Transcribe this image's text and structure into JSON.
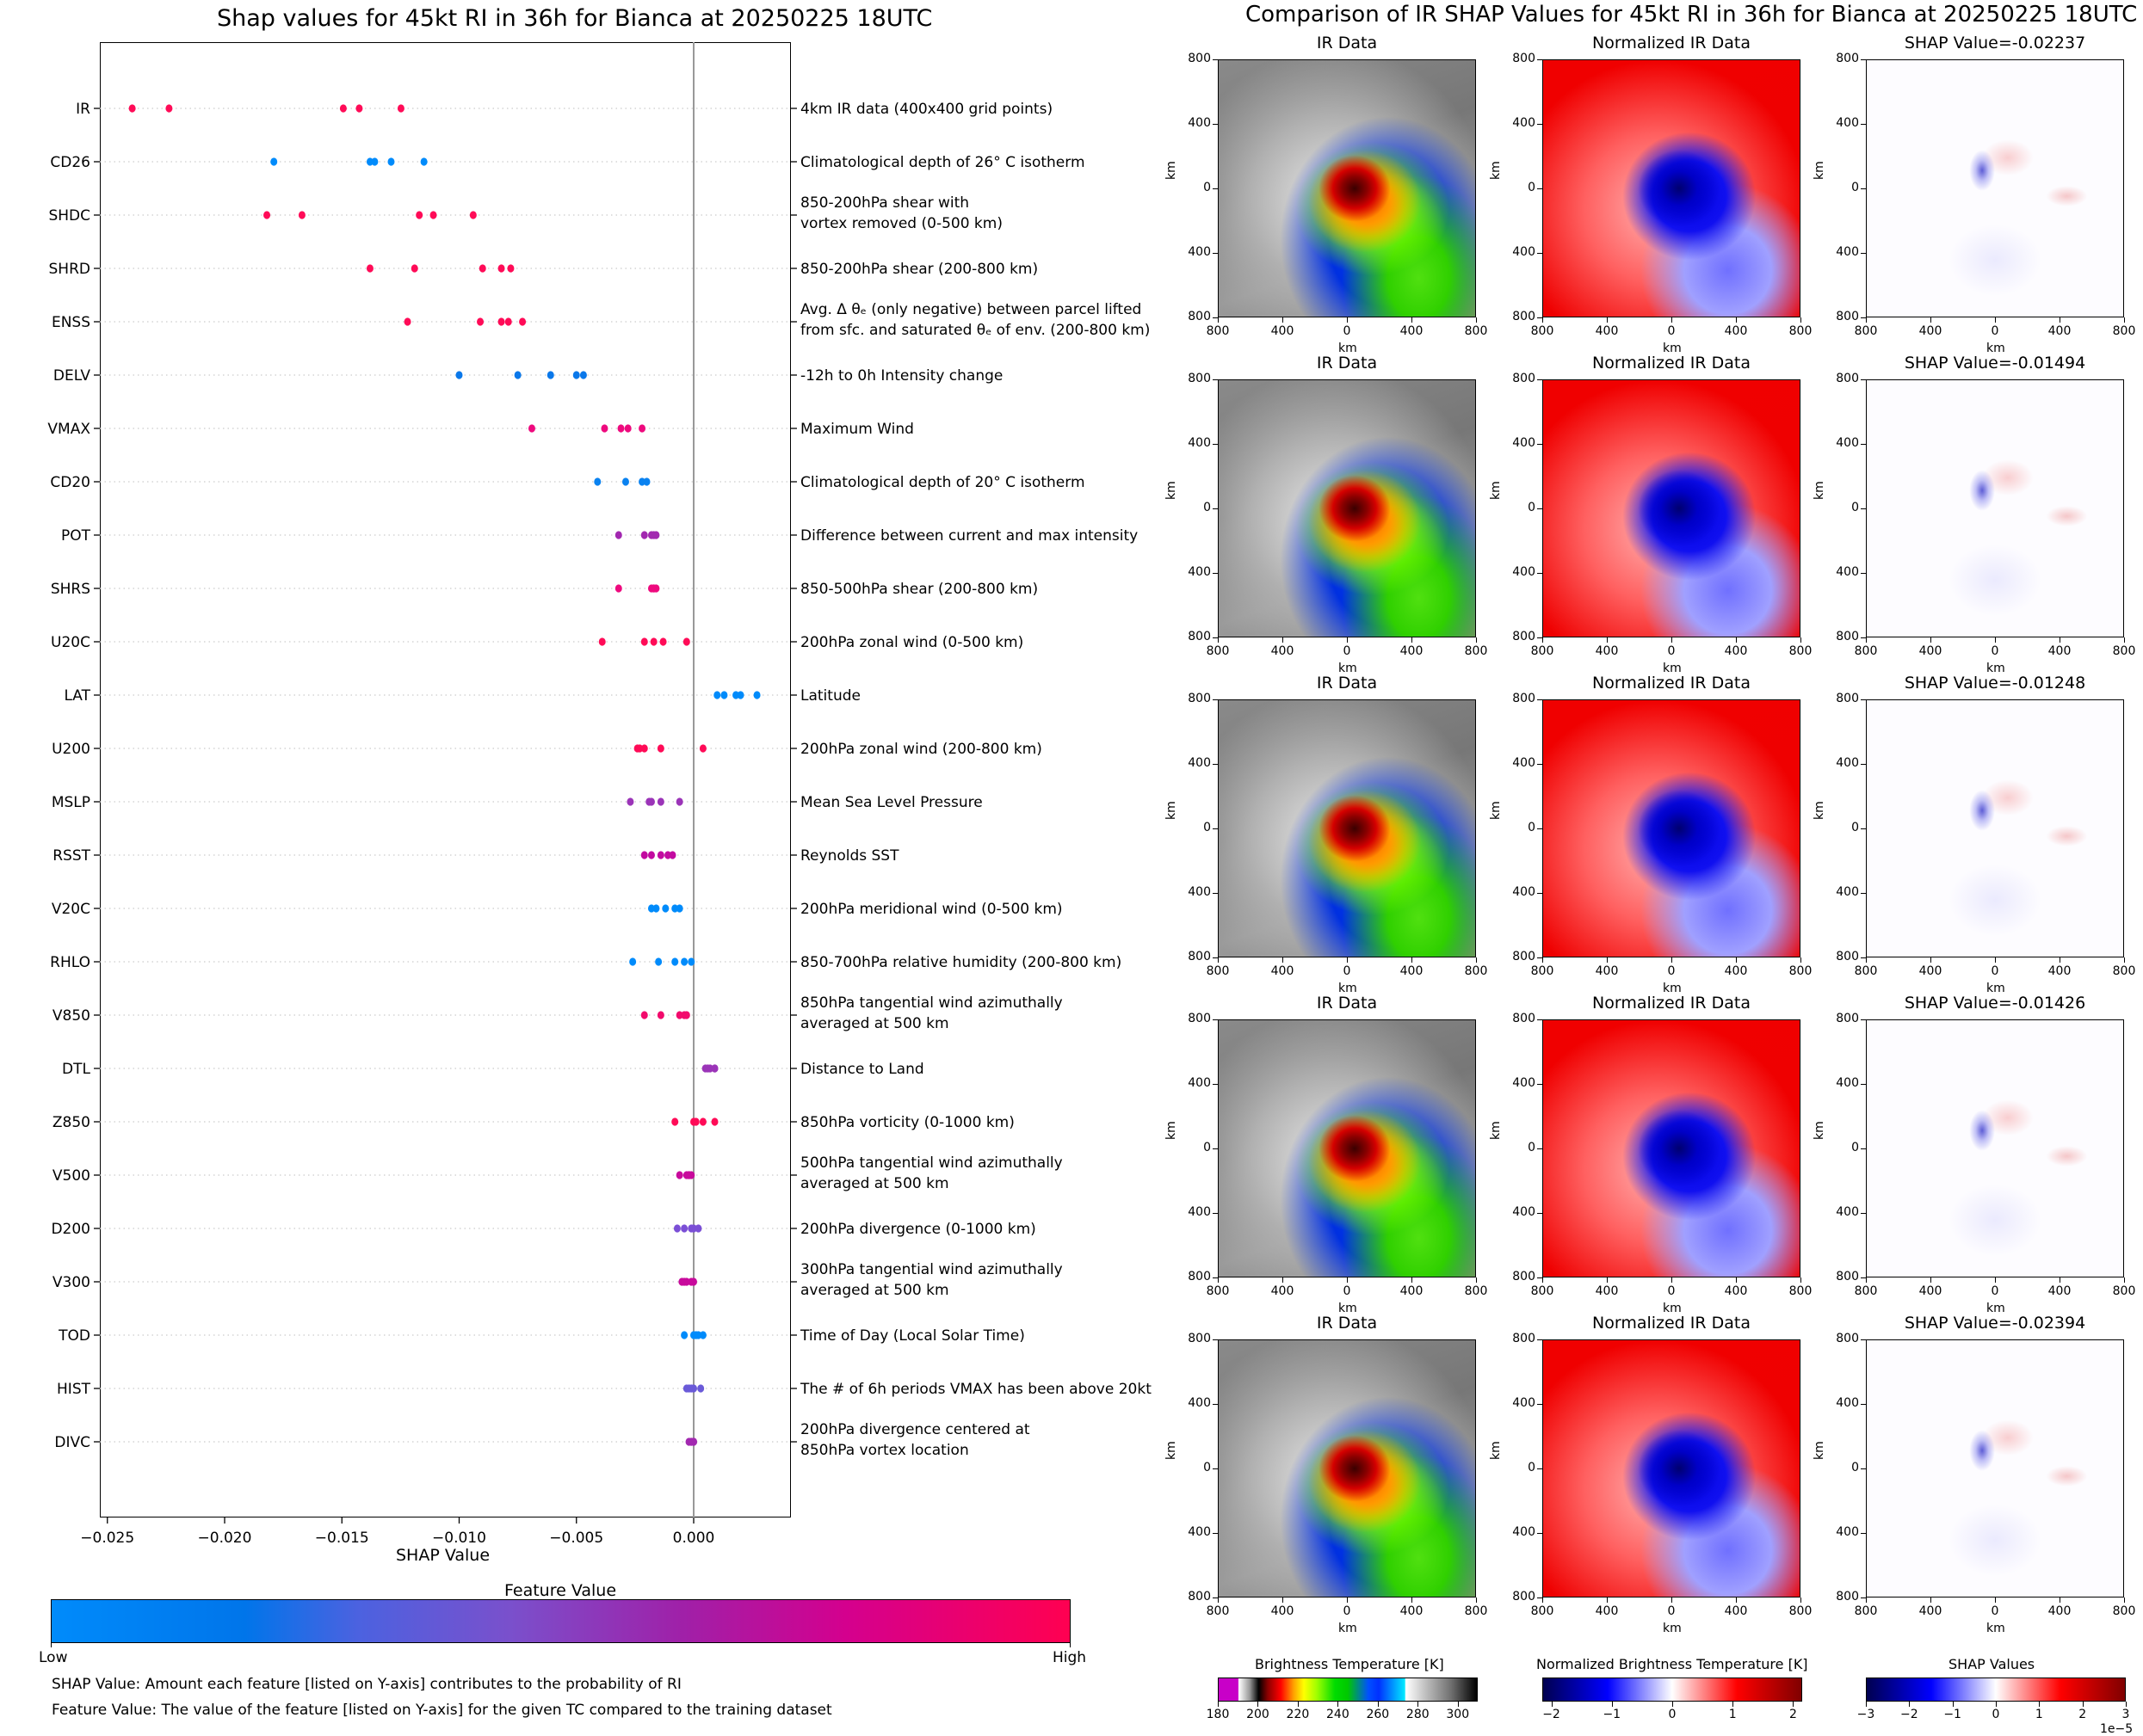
{
  "chart_data": [
    {
      "type": "scatter",
      "title": "Shap values for 45kt RI in 36h for Bianca at 20250225 18UTC",
      "xlabel": "SHAP Value",
      "ylabel": "",
      "xlim": [
        -0.0255,
        0.0041
      ],
      "xticks": [
        -0.025,
        -0.02,
        -0.015,
        -0.01,
        -0.005,
        0.0
      ],
      "xtick_labels": [
        "−0.025",
        "−0.020",
        "−0.015",
        "−0.010",
        "−0.005",
        "0.000"
      ],
      "zero_line": true,
      "grid": "horizontal dotted at each feature",
      "features": [
        {
          "name": "IR",
          "description": [
            "4km IR data (400x400 grid points)"
          ],
          "color": "#ff0b57",
          "values": [
            -0.02394,
            -0.02237,
            -0.01494,
            -0.01426,
            -0.01248
          ]
        },
        {
          "name": "CD26",
          "description": [
            "Climatological depth of 26° C isotherm"
          ],
          "color": "#008bfb",
          "values": [
            -0.0179,
            -0.0138,
            -0.0136,
            -0.0129,
            -0.0115
          ]
        },
        {
          "name": "SHDC",
          "description": [
            "850-200hPa shear with",
            "vortex removed (0-500 km)"
          ],
          "color": "#ff0b57",
          "values": [
            -0.0182,
            -0.0167,
            -0.0117,
            -0.0111,
            -0.0094
          ]
        },
        {
          "name": "SHRD",
          "description": [
            "850-200hPa shear (200-800 km)"
          ],
          "color": "#ff0b57",
          "values": [
            -0.0138,
            -0.0119,
            -0.009,
            -0.0082,
            -0.0078
          ]
        },
        {
          "name": "ENSS",
          "description": [
            "Avg. Δ θₑ (only negative) between parcel lifted",
            "from sfc. and saturated θₑ of env. (200-800 km)"
          ],
          "color": "#ff0b57",
          "values": [
            -0.0122,
            -0.0091,
            -0.0082,
            -0.0079,
            -0.0073
          ]
        },
        {
          "name": "DELV",
          "description": [
            "-12h to 0h Intensity change"
          ],
          "color": "#0a78ea",
          "values": [
            -0.01,
            -0.0075,
            -0.0061,
            -0.005,
            -0.0047
          ]
        },
        {
          "name": "VMAX",
          "description": [
            "Maximum Wind"
          ],
          "color": "#ee0a7e",
          "values": [
            -0.0069,
            -0.0038,
            -0.0031,
            -0.0028,
            -0.0022
          ]
        },
        {
          "name": "CD20",
          "description": [
            "Climatological depth of 20° C isotherm"
          ],
          "color": "#0a82f0",
          "values": [
            -0.0041,
            -0.0029,
            -0.0022,
            -0.002
          ]
        },
        {
          "name": "POT",
          "description": [
            "Difference between current and max intensity"
          ],
          "color": "#a228b0",
          "values": [
            -0.0032,
            -0.0021,
            -0.0018,
            -0.0017,
            -0.0016
          ]
        },
        {
          "name": "SHRS",
          "description": [
            "850-500hPa shear (200-800 km)"
          ],
          "color": "#ee0a7e",
          "values": [
            -0.0032,
            -0.0018,
            -0.0017,
            -0.0017,
            -0.0016
          ]
        },
        {
          "name": "U20C",
          "description": [
            "200hPa zonal wind (0-500 km)"
          ],
          "color": "#ff0b57",
          "values": [
            -0.0039,
            -0.0021,
            -0.0017,
            -0.0013,
            -0.0003
          ]
        },
        {
          "name": "LAT",
          "description": [
            "Latitude"
          ],
          "color": "#008bfb",
          "values": [
            0.001,
            0.0013,
            0.0018,
            0.002,
            0.0027
          ]
        },
        {
          "name": "U200",
          "description": [
            "200hPa zonal wind (200-800 km)"
          ],
          "color": "#ff0b57",
          "values": [
            -0.0024,
            -0.0023,
            -0.0021,
            -0.0014,
            0.0004
          ]
        },
        {
          "name": "MSLP",
          "description": [
            "Mean Sea Level Pressure"
          ],
          "color": "#9b34b8",
          "values": [
            -0.0027,
            -0.0019,
            -0.0018,
            -0.0014,
            -0.0006
          ]
        },
        {
          "name": "RSST",
          "description": [
            "Reynolds SST"
          ],
          "color": "#c20aa0",
          "values": [
            -0.0021,
            -0.0018,
            -0.0014,
            -0.0011,
            -0.0009
          ]
        },
        {
          "name": "V20C",
          "description": [
            "200hPa meridional wind (0-500 km)"
          ],
          "color": "#008bfb",
          "values": [
            -0.0018,
            -0.0016,
            -0.0012,
            -0.0008,
            -0.0006
          ]
        },
        {
          "name": "RHLO",
          "description": [
            "850-700hPa relative humidity (200-800 km)"
          ],
          "color": "#008bfb",
          "values": [
            -0.0026,
            -0.0015,
            -0.0008,
            -0.0004,
            -0.0001
          ]
        },
        {
          "name": "V850",
          "description": [
            "850hPa tangential wind azimuthally",
            "averaged at 500 km"
          ],
          "color": "#f20a6c",
          "values": [
            -0.0021,
            -0.0014,
            -0.0006,
            -0.0004,
            -0.0003
          ]
        },
        {
          "name": "DTL",
          "description": [
            "Distance to Land"
          ],
          "color": "#9b34b8",
          "values": [
            0.0005,
            0.0006,
            0.0007,
            0.0009,
            0.0009
          ]
        },
        {
          "name": "Z850",
          "description": [
            "850hPa vorticity (0-1000 km)"
          ],
          "color": "#ff0b57",
          "values": [
            -0.0008,
            0.0,
            0.0001,
            0.0004,
            0.0009
          ]
        },
        {
          "name": "V500",
          "description": [
            "500hPa tangential wind azimuthally",
            "averaged at 500 km"
          ],
          "color": "#c80a9c",
          "values": [
            -0.0006,
            -0.0003,
            -0.0002,
            -0.0002,
            -0.0001
          ]
        },
        {
          "name": "D200",
          "description": [
            "200hPa divergence (0-1000 km)"
          ],
          "color": "#7b4fd6",
          "values": [
            -0.0007,
            -0.0004,
            -0.0001,
            0.0,
            0.0002
          ]
        },
        {
          "name": "V300",
          "description": [
            "300hPa tangential wind azimuthally",
            "averaged at 500 km"
          ],
          "color": "#c80a9c",
          "values": [
            -0.0005,
            -0.0004,
            -0.0003,
            -0.0001,
            0.0
          ]
        },
        {
          "name": "TOD",
          "description": [
            "Time of Day (Local Solar Time)"
          ],
          "color": "#008bfb",
          "values": [
            -0.0004,
            0.0,
            0.0001,
            0.0002,
            0.0004
          ]
        },
        {
          "name": "HIST",
          "description": [
            "The # of 6h periods VMAX has been above 20kt"
          ],
          "color": "#6a5ad8",
          "values": [
            -0.0003,
            -0.0002,
            -0.0001,
            0.0,
            0.0003
          ]
        },
        {
          "name": "DIVC",
          "description": [
            "200hPa divergence centered at",
            "850hPa vortex location"
          ],
          "color": "#a228b0",
          "values": [
            -0.0002,
            -0.0001,
            -0.0001,
            0.0,
            0.0
          ]
        }
      ],
      "colorbar": {
        "title": "Feature Value",
        "low_label": "Low",
        "high_label": "High",
        "colors": [
          "#008bfb",
          "#0075ea",
          "#6b57d6",
          "#a020a8",
          "#d4008e",
          "#ff0051"
        ]
      }
    },
    {
      "type": "heatmap",
      "title": "Comparison of IR SHAP Values for 45kt RI in 36h for Bianca at 20250225 18UTC",
      "rows": 5,
      "columns": [
        "IR Data",
        "Normalized IR Data",
        "SHAP Value"
      ],
      "shap_values": [
        -0.02237,
        -0.01494,
        -0.01248,
        -0.01426,
        -0.02394
      ],
      "axis_label": "km",
      "xtick_labels": [
        "800",
        "400",
        "0",
        "400",
        "800"
      ],
      "ytick_labels": [
        "800",
        "400",
        "0",
        "400",
        "800"
      ],
      "colorbars": [
        {
          "title": "Brightness Temperature [K]",
          "ticks": [
            "180",
            "200",
            "220",
            "240",
            "260",
            "280",
            "300"
          ],
          "range": [
            180,
            310
          ]
        },
        {
          "title": "Normalized Brightness Temperature [K]",
          "ticks": [
            "−2",
            "−1",
            "0",
            "1",
            "2"
          ],
          "range": [
            -2.15,
            2.15
          ]
        },
        {
          "title": "SHAP Values",
          "ticks": [
            "−3",
            "−2",
            "−1",
            "0",
            "1",
            "2",
            "3"
          ],
          "range": [
            -3,
            3
          ],
          "offset_label": "1e−5"
        }
      ]
    }
  ],
  "footer": {
    "shap_note": "SHAP Value: Amount each feature [listed on Y-axis] contributes to the probability of RI",
    "feature_note": "Feature Value: The value of the feature [listed on Y-axis] for the given TC compared to the training dataset"
  }
}
